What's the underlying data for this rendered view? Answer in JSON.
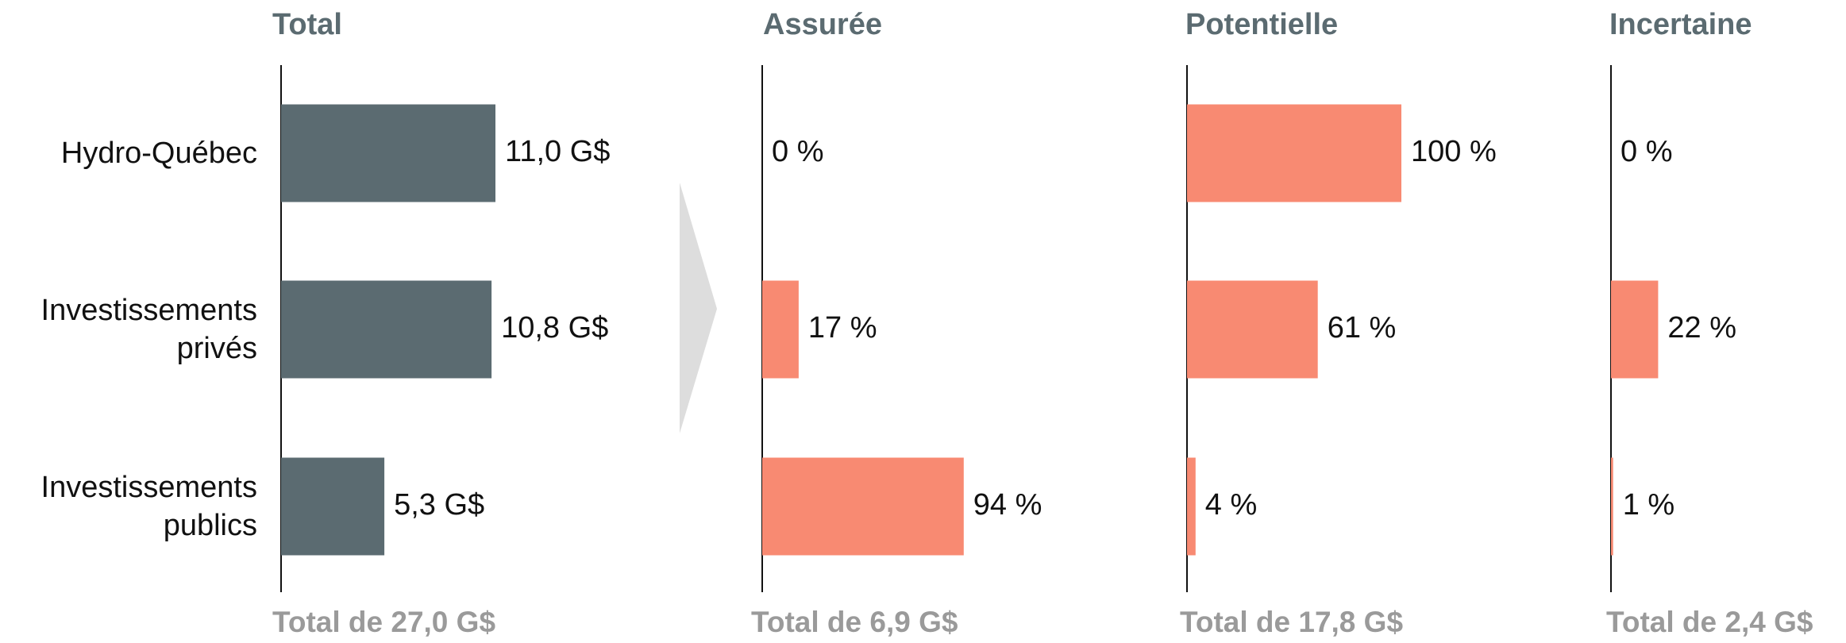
{
  "chart_data": [
    {
      "type": "barh",
      "title": "Total",
      "categories": [
        "Hydro-Québec",
        "Investissements privés",
        "Investissements publics"
      ],
      "values": [
        11.0,
        10.8,
        5.3
      ],
      "value_labels": [
        "11,0 G$",
        "10,8 G$",
        "5,3 G$"
      ],
      "xlim": [
        0,
        11
      ],
      "color": "#5b6b71",
      "footer": "Total de 27,0 G$"
    },
    {
      "type": "barh",
      "title": "Assurée",
      "values": [
        0,
        17,
        94
      ],
      "value_labels": [
        "0 %",
        "17 %",
        "94 %"
      ],
      "xlim": [
        0,
        100
      ],
      "color": "#f88a72",
      "footer": "Total de 6,9 G$"
    },
    {
      "type": "barh",
      "title": "Potentielle",
      "values": [
        100,
        61,
        4
      ],
      "value_labels": [
        "100 %",
        "61 %",
        "4 %"
      ],
      "xlim": [
        0,
        100
      ],
      "color": "#f88a72",
      "footer": "Total de 17,8 G$"
    },
    {
      "type": "barh",
      "title": "Incertaine",
      "values": [
        0,
        22,
        1
      ],
      "value_labels": [
        "0 %",
        "22 %",
        "1 %"
      ],
      "xlim": [
        0,
        100
      ],
      "color": "#f88a72",
      "footer": "Total de 2,4 G$"
    }
  ]
}
